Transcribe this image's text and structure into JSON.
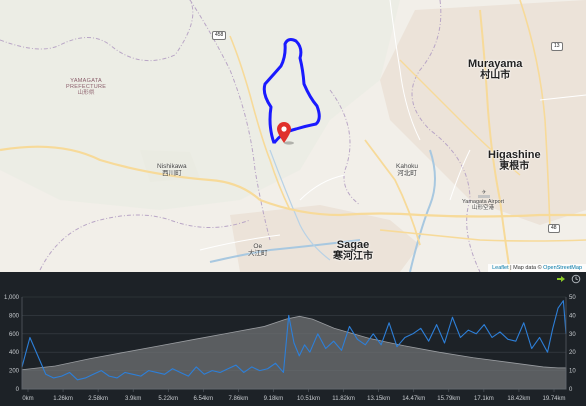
{
  "map": {
    "labels": {
      "murayama_en": "Murayama",
      "murayama_ja": "村山市",
      "higashine_en": "Higashine",
      "higashine_ja": "東根市",
      "nishikawa_en": "Nishikawa",
      "nishikawa_ja": "西川町",
      "kahoku_en": "Kahoku",
      "kahoku_ja": "河北町",
      "sagae_en": "Sagae",
      "sagae_ja": "寒河江市",
      "oe_en": "Oe",
      "oe_ja": "大江町",
      "prefecture_en_1": "YAMAGATA",
      "prefecture_en_2": "PREFECTURE",
      "prefecture_ja": "山形県",
      "airport_en": "Yamagata Airport",
      "airport_ja": "山形空港"
    },
    "road_shields": [
      "458",
      "13",
      "48"
    ],
    "attribution": {
      "leaflet": "Leaflet",
      "separator": " | Map data © ",
      "osm": "OpenStreetMap"
    },
    "colors": {
      "route": "#1a1aff",
      "marker": "#e0302b",
      "background": "#f2efe9"
    }
  },
  "elevation_chart": {
    "icons": [
      "expand-arrows-icon",
      "clock-icon"
    ],
    "colors": {
      "background": "#1d2227",
      "elevation_fill": "#6f7174",
      "speed_line": "#2d7fd8",
      "axis_text": "#c8ccd0"
    }
  },
  "chart_data": {
    "type": "area",
    "title": "",
    "xlabel": "",
    "ylabel": "",
    "x_ticks": [
      "0km",
      "1.26km",
      "2.58km",
      "3.9km",
      "5.22km",
      "6.54km",
      "7.86km",
      "9.18km",
      "10.51km",
      "11.82km",
      "13.15km",
      "14.47km",
      "15.79km",
      "17.1km",
      "18.42km",
      "19.74km"
    ],
    "y_left_ticks": [
      "0",
      "200",
      "400",
      "600",
      "800",
      "1,000"
    ],
    "y_right_ticks": [
      "0",
      "10",
      "20",
      "30",
      "40",
      "50"
    ],
    "ylim_left": [
      0,
      1000
    ],
    "ylim_right": [
      0,
      50
    ],
    "xlim": [
      0,
      20.6
    ],
    "grid": true,
    "series": [
      {
        "axis": "left",
        "type": "area",
        "x": [
          0,
          1.26,
          2.58,
          3.9,
          5.22,
          6.54,
          7.86,
          9.18,
          10.0,
          10.51,
          11.0,
          11.82,
          13.15,
          14.47,
          15.79,
          17.1,
          18.42,
          19.74,
          20.3,
          20.6
        ],
        "values": [
          210,
          250,
          330,
          400,
          470,
          540,
          610,
          680,
          760,
          790,
          760,
          660,
          550,
          470,
          400,
          340,
          290,
          240,
          230,
          230
        ]
      },
      {
        "axis": "right",
        "type": "line",
        "x": [
          0,
          0.3,
          0.6,
          0.9,
          1.2,
          1.5,
          1.8,
          2.1,
          2.4,
          2.7,
          3.0,
          3.3,
          3.6,
          3.9,
          4.2,
          4.5,
          4.8,
          5.1,
          5.4,
          5.7,
          6.0,
          6.3,
          6.6,
          6.9,
          7.2,
          7.5,
          7.8,
          8.1,
          8.4,
          8.7,
          9.0,
          9.3,
          9.6,
          9.9,
          10.1,
          10.3,
          10.5,
          10.7,
          10.9,
          11.2,
          11.5,
          11.8,
          12.1,
          12.4,
          12.7,
          13.0,
          13.3,
          13.6,
          13.9,
          14.2,
          14.5,
          14.8,
          15.1,
          15.4,
          15.7,
          16.0,
          16.3,
          16.6,
          16.9,
          17.2,
          17.5,
          17.8,
          18.1,
          18.4,
          18.7,
          19.0,
          19.3,
          19.6,
          19.9,
          20.1,
          20.3,
          20.5,
          20.6
        ],
        "values": [
          12,
          28,
          18,
          8,
          6,
          7,
          9,
          5,
          6,
          8,
          10,
          7,
          6,
          9,
          8,
          7,
          10,
          9,
          8,
          11,
          9,
          7,
          12,
          8,
          10,
          9,
          11,
          13,
          9,
          12,
          10,
          11,
          14,
          9,
          40,
          25,
          18,
          24,
          20,
          30,
          22,
          26,
          21,
          34,
          27,
          24,
          30,
          24,
          36,
          23,
          28,
          30,
          33,
          26,
          35,
          25,
          39,
          28,
          32,
          30,
          35,
          28,
          31,
          27,
          26,
          36,
          22,
          28,
          20,
          33,
          44,
          48,
          30
        ]
      }
    ]
  }
}
